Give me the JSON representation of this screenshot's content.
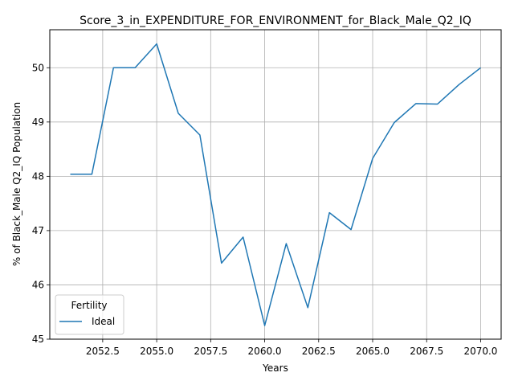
{
  "chart_data": {
    "type": "line",
    "title": "Score_3_in_EXPENDITURE_FOR_ENVIRONMENT_for_Black_Male_Q2_IQ",
    "xlabel": "Years",
    "ylabel": "% of Black_Male Q2_IQ Population",
    "xlim": [
      2050.05,
      2070.95
    ],
    "ylim": [
      45.0,
      50.7
    ],
    "x_ticks": [
      2052.5,
      2055.0,
      2057.5,
      2060.0,
      2062.5,
      2065.0,
      2067.5,
      2070.0
    ],
    "x_tick_labels": [
      "2052.5",
      "2055.0",
      "2057.5",
      "2060.0",
      "2062.5",
      "2065.0",
      "2067.5",
      "2070.0"
    ],
    "y_ticks": [
      45,
      46,
      47,
      48,
      49,
      50
    ],
    "y_tick_labels": [
      "45",
      "46",
      "47",
      "48",
      "49",
      "50"
    ],
    "grid": true,
    "legend": {
      "title": "Fertility",
      "location": "lower-left"
    },
    "colors": {
      "series": "#1f77b4",
      "grid": "#b0b0b0"
    },
    "x": [
      2051,
      2052,
      2053,
      2054,
      2055,
      2056,
      2057,
      2058,
      2059,
      2060,
      2061,
      2062,
      2063,
      2064,
      2065,
      2066,
      2067,
      2068,
      2069,
      2070
    ],
    "series": [
      {
        "name": "Ideal",
        "values": [
          48.04,
          48.04,
          50.0,
          50.0,
          50.44,
          49.16,
          48.76,
          46.4,
          46.88,
          45.25,
          46.76,
          45.58,
          47.33,
          47.02,
          48.33,
          48.99,
          49.34,
          49.33,
          49.69,
          50.0
        ]
      }
    ]
  }
}
